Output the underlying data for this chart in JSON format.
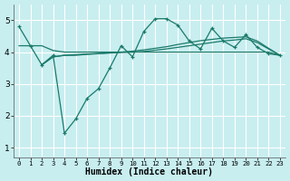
{
  "xlabel": "Humidex (Indice chaleur)",
  "bg_color": "#c8eef0",
  "grid_color": "#ffffff",
  "line_color": "#1a7a6a",
  "xlim": [
    -0.5,
    23.5
  ],
  "ylim": [
    0.7,
    5.5
  ],
  "xtick_labels": [
    "0",
    "1",
    "2",
    "3",
    "4",
    "5",
    "6",
    "7",
    "8",
    "9",
    "10",
    "11",
    "12",
    "13",
    "14",
    "15",
    "16",
    "17",
    "18",
    "19",
    "20",
    "21",
    "22",
    "23"
  ],
  "ytick_labels": [
    "1",
    "2",
    "3",
    "4",
    "5"
  ],
  "line1_x": [
    0,
    1,
    2,
    3,
    4,
    5,
    6,
    7,
    8,
    9,
    10,
    11,
    12,
    13,
    14,
    15,
    16,
    17,
    18,
    19,
    20,
    21,
    22,
    23
  ],
  "line1_y": [
    4.8,
    4.2,
    3.6,
    3.9,
    1.45,
    1.9,
    2.55,
    2.85,
    3.5,
    4.2,
    3.85,
    4.65,
    5.05,
    5.05,
    4.85,
    4.35,
    4.1,
    4.75,
    4.35,
    4.15,
    4.55,
    4.15,
    3.95,
    3.9
  ],
  "line2_x": [
    0,
    1,
    2,
    3,
    4,
    5,
    6,
    7,
    8,
    9,
    10,
    11,
    12,
    13,
    14,
    15,
    16,
    17,
    18,
    19,
    20,
    21,
    22,
    23
  ],
  "line2_y": [
    4.2,
    4.2,
    4.2,
    4.05,
    4.0,
    4.0,
    4.0,
    4.0,
    4.0,
    4.0,
    4.0,
    4.0,
    4.0,
    4.0,
    4.0,
    4.0,
    4.0,
    4.0,
    4.0,
    4.0,
    4.0,
    4.0,
    4.0,
    3.9
  ],
  "line3_x": [
    2,
    3,
    4,
    5,
    6,
    7,
    8,
    9,
    10,
    11,
    12,
    13,
    14,
    15,
    16,
    17,
    18,
    19,
    20,
    21,
    22,
    23
  ],
  "line3_y": [
    3.6,
    3.85,
    3.9,
    3.9,
    3.93,
    3.95,
    3.97,
    3.99,
    4.0,
    4.02,
    4.06,
    4.1,
    4.15,
    4.2,
    4.25,
    4.3,
    4.35,
    4.38,
    4.42,
    4.3,
    4.1,
    3.9
  ],
  "line4_x": [
    2,
    3,
    4,
    5,
    6,
    7,
    8,
    9,
    10,
    11,
    12,
    13,
    14,
    15,
    16,
    17,
    18,
    19,
    20,
    21,
    22,
    23
  ],
  "line4_y": [
    3.6,
    3.85,
    3.9,
    3.92,
    3.94,
    3.96,
    3.98,
    4.0,
    4.03,
    4.07,
    4.12,
    4.17,
    4.24,
    4.3,
    4.36,
    4.4,
    4.44,
    4.46,
    4.48,
    4.35,
    4.12,
    3.9
  ]
}
